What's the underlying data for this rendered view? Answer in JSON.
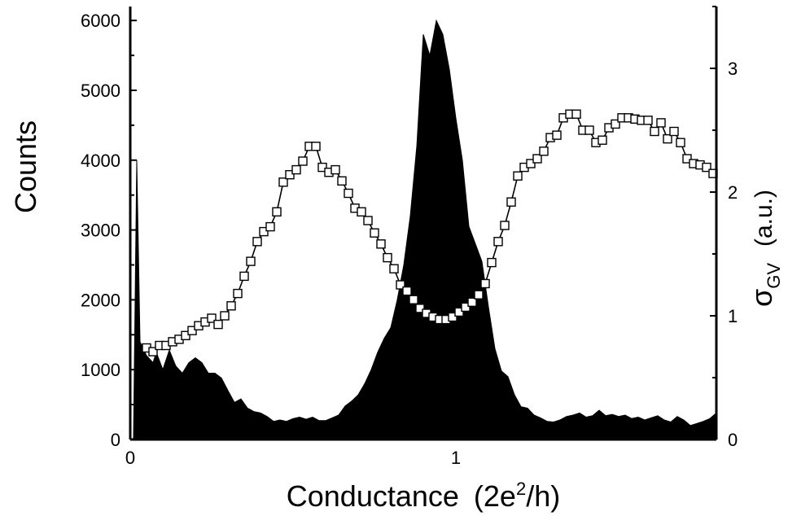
{
  "chart_data": {
    "type": "area+scatter",
    "xlabel": "Conductance",
    "xlabel_unit_prefix": "(2e",
    "xlabel_unit_sup": "2",
    "xlabel_unit_suffix": "/h)",
    "ylabel_left": "Counts",
    "ylabel_right_symbol": "σ",
    "ylabel_right_sub": "GV",
    "ylabel_right_unit": "(a.u.)",
    "xlim": [
      0,
      1.8
    ],
    "ylim_left": [
      0,
      6200
    ],
    "ylim_right": [
      0,
      3.5
    ],
    "x_ticks": [
      0,
      1
    ],
    "x_tick_labels": [
      "0",
      "1"
    ],
    "y_left_ticks": [
      0,
      1000,
      2000,
      3000,
      4000,
      5000,
      6000
    ],
    "y_left_tick_labels": [
      "0",
      "1000",
      "2000",
      "3000",
      "4000",
      "5000",
      "6000"
    ],
    "y_right_ticks": [
      0,
      1,
      2,
      3
    ],
    "y_right_tick_labels": [
      "0",
      "1",
      "2",
      "3"
    ],
    "series": [
      {
        "kind": "area",
        "axis": "left",
        "color": "#000000",
        "points": [
          [
            0.01,
            0
          ],
          [
            0.02,
            4000
          ],
          [
            0.03,
            1400
          ],
          [
            0.05,
            1200
          ],
          [
            0.07,
            1100
          ],
          [
            0.08,
            1250
          ],
          [
            0.1,
            1000
          ],
          [
            0.12,
            1280
          ],
          [
            0.14,
            1050
          ],
          [
            0.16,
            950
          ],
          [
            0.18,
            1100
          ],
          [
            0.2,
            1170
          ],
          [
            0.22,
            1100
          ],
          [
            0.24,
            950
          ],
          [
            0.26,
            950
          ],
          [
            0.28,
            880
          ],
          [
            0.3,
            700
          ],
          [
            0.32,
            530
          ],
          [
            0.34,
            580
          ],
          [
            0.36,
            450
          ],
          [
            0.38,
            400
          ],
          [
            0.4,
            380
          ],
          [
            0.42,
            330
          ],
          [
            0.44,
            260
          ],
          [
            0.46,
            280
          ],
          [
            0.48,
            260
          ],
          [
            0.5,
            300
          ],
          [
            0.52,
            320
          ],
          [
            0.54,
            290
          ],
          [
            0.56,
            320
          ],
          [
            0.58,
            270
          ],
          [
            0.6,
            270
          ],
          [
            0.62,
            310
          ],
          [
            0.64,
            350
          ],
          [
            0.66,
            480
          ],
          [
            0.68,
            550
          ],
          [
            0.7,
            640
          ],
          [
            0.72,
            800
          ],
          [
            0.74,
            1000
          ],
          [
            0.76,
            1250
          ],
          [
            0.78,
            1450
          ],
          [
            0.8,
            1600
          ],
          [
            0.82,
            2000
          ],
          [
            0.84,
            2500
          ],
          [
            0.86,
            3200
          ],
          [
            0.88,
            4200
          ],
          [
            0.9,
            5800
          ],
          [
            0.92,
            5500
          ],
          [
            0.94,
            6000
          ],
          [
            0.96,
            5800
          ],
          [
            0.98,
            5300
          ],
          [
            1.0,
            4600
          ],
          [
            1.02,
            4000
          ],
          [
            1.04,
            3050
          ],
          [
            1.06,
            2800
          ],
          [
            1.08,
            2550
          ],
          [
            1.1,
            1900
          ],
          [
            1.12,
            1300
          ],
          [
            1.14,
            980
          ],
          [
            1.16,
            900
          ],
          [
            1.18,
            640
          ],
          [
            1.2,
            470
          ],
          [
            1.22,
            450
          ],
          [
            1.24,
            350
          ],
          [
            1.26,
            310
          ],
          [
            1.28,
            260
          ],
          [
            1.3,
            250
          ],
          [
            1.32,
            280
          ],
          [
            1.34,
            330
          ],
          [
            1.36,
            350
          ],
          [
            1.38,
            380
          ],
          [
            1.4,
            320
          ],
          [
            1.42,
            340
          ],
          [
            1.44,
            420
          ],
          [
            1.46,
            340
          ],
          [
            1.48,
            360
          ],
          [
            1.5,
            330
          ],
          [
            1.52,
            350
          ],
          [
            1.54,
            300
          ],
          [
            1.56,
            320
          ],
          [
            1.58,
            280
          ],
          [
            1.6,
            310
          ],
          [
            1.62,
            340
          ],
          [
            1.64,
            280
          ],
          [
            1.66,
            250
          ],
          [
            1.68,
            330
          ],
          [
            1.7,
            280
          ],
          [
            1.72,
            200
          ],
          [
            1.74,
            230
          ],
          [
            1.76,
            260
          ],
          [
            1.78,
            300
          ],
          [
            1.8,
            380
          ]
        ]
      },
      {
        "kind": "line+markers",
        "axis": "right",
        "marker": "open-square",
        "color": "#000000",
        "x": [
          0.05,
          0.07,
          0.09,
          0.11,
          0.13,
          0.15,
          0.17,
          0.19,
          0.21,
          0.23,
          0.25,
          0.27,
          0.29,
          0.31,
          0.33,
          0.35,
          0.37,
          0.39,
          0.41,
          0.43,
          0.45,
          0.47,
          0.49,
          0.51,
          0.53,
          0.55,
          0.57,
          0.59,
          0.61,
          0.63,
          0.65,
          0.67,
          0.69,
          0.71,
          0.73,
          0.75,
          0.77,
          0.79,
          0.81,
          0.83,
          0.85,
          0.87,
          0.89,
          0.91,
          0.93,
          0.95,
          0.97,
          0.99,
          1.01,
          1.03,
          1.05,
          1.07,
          1.09,
          1.11,
          1.13,
          1.15,
          1.17,
          1.19,
          1.21,
          1.23,
          1.25,
          1.27,
          1.29,
          1.31,
          1.33,
          1.35,
          1.37,
          1.39,
          1.41,
          1.43,
          1.45,
          1.47,
          1.49,
          1.51,
          1.53,
          1.55,
          1.57,
          1.59,
          1.61,
          1.63,
          1.65,
          1.67,
          1.69,
          1.71,
          1.73,
          1.75,
          1.77,
          1.79
        ],
        "values": [
          0.74,
          0.71,
          0.76,
          0.76,
          0.79,
          0.81,
          0.84,
          0.88,
          0.92,
          0.95,
          0.98,
          0.93,
          1.0,
          1.08,
          1.18,
          1.32,
          1.44,
          1.6,
          1.68,
          1.72,
          1.84,
          2.08,
          2.14,
          2.18,
          2.25,
          2.37,
          2.37,
          2.2,
          2.16,
          2.18,
          2.09,
          1.99,
          1.87,
          1.84,
          1.77,
          1.67,
          1.58,
          1.47,
          1.38,
          1.25,
          1.2,
          1.13,
          1.06,
          1.02,
          0.99,
          0.97,
          0.97,
          0.99,
          1.03,
          1.07,
          1.11,
          1.17,
          1.26,
          1.43,
          1.6,
          1.73,
          1.92,
          2.13,
          2.2,
          2.23,
          2.27,
          2.33,
          2.44,
          2.46,
          2.6,
          2.63,
          2.63,
          2.5,
          2.5,
          2.4,
          2.42,
          2.52,
          2.55,
          2.6,
          2.6,
          2.59,
          2.58,
          2.58,
          2.49,
          2.56,
          2.43,
          2.49,
          2.4,
          2.27,
          2.23,
          2.22,
          2.2,
          2.15
        ]
      }
    ]
  }
}
